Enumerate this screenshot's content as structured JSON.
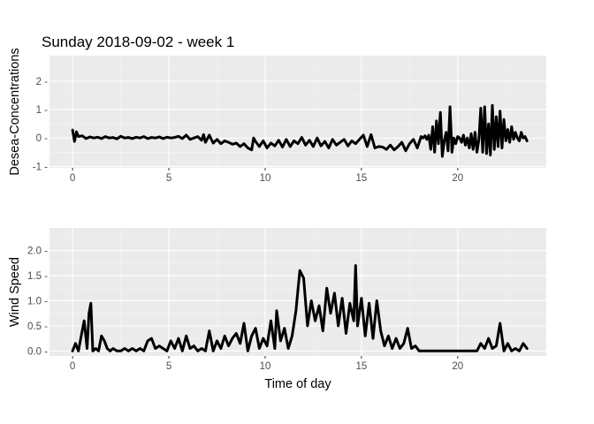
{
  "title": "Sunday 2018-09-02 - week 1",
  "chart_data": [
    {
      "type": "line",
      "ylabel": "Desea-Concentrations",
      "xlabel": "",
      "xlim": [
        -1.2,
        24.6
      ],
      "ylim": [
        -1.05,
        2.9
      ],
      "xticks": [
        0,
        5,
        10,
        15,
        20
      ],
      "yticks": [
        -1,
        0,
        1,
        2
      ],
      "xtick_labels": [
        "0",
        "5",
        "10",
        "15",
        "20"
      ],
      "ytick_labels": [
        "-1 -",
        "0 -",
        "1 -",
        "2 -"
      ],
      "x": [
        0,
        0.1,
        0.2,
        0.3,
        0.5,
        0.7,
        0.9,
        1.1,
        1.3,
        1.5,
        1.7,
        1.9,
        2.1,
        2.3,
        2.5,
        2.7,
        2.9,
        3.1,
        3.3,
        3.5,
        3.7,
        3.9,
        4.1,
        4.3,
        4.5,
        4.7,
        4.9,
        5.1,
        5.3,
        5.5,
        5.7,
        5.9,
        6.1,
        6.3,
        6.5,
        6.7,
        6.8,
        6.9,
        7.1,
        7.3,
        7.5,
        7.7,
        7.9,
        8.1,
        8.3,
        8.5,
        8.7,
        8.9,
        9.1,
        9.3,
        9.4,
        9.5,
        9.7,
        9.9,
        10.1,
        10.3,
        10.5,
        10.7,
        10.9,
        11.1,
        11.3,
        11.5,
        11.7,
        11.9,
        12.1,
        12.3,
        12.5,
        12.7,
        12.9,
        13.1,
        13.3,
        13.5,
        13.7,
        13.9,
        14.1,
        14.3,
        14.5,
        14.7,
        14.9,
        15.1,
        15.3,
        15.5,
        15.7,
        15.9,
        16.1,
        16.3,
        16.5,
        16.7,
        16.9,
        17.1,
        17.3,
        17.5,
        17.7,
        17.9,
        18.1,
        18.2,
        18.3,
        18.4,
        18.5,
        18.6,
        18.7,
        18.8,
        18.9,
        19.0,
        19.1,
        19.2,
        19.3,
        19.4,
        19.5,
        19.6,
        19.7,
        19.8,
        19.9,
        20.0,
        20.1,
        20.2,
        20.3,
        20.4,
        20.5,
        20.6,
        20.7,
        20.8,
        20.9,
        21.0,
        21.1,
        21.2,
        21.3,
        21.4,
        21.5,
        21.6,
        21.7,
        21.8,
        21.9,
        22.0,
        22.1,
        22.2,
        22.3,
        22.4,
        22.5,
        22.6,
        22.7,
        22.8,
        22.9,
        23.0,
        23.1,
        23.2,
        23.3,
        23.4,
        23.5,
        23.6
      ],
      "y": [
        0.28,
        -0.12,
        0.22,
        0.05,
        0.08,
        -0.02,
        0.04,
        0.0,
        0.03,
        -0.02,
        0.05,
        0.0,
        0.02,
        -0.03,
        0.06,
        0.0,
        0.02,
        -0.02,
        0.03,
        0.0,
        0.05,
        -0.02,
        0.02,
        0.0,
        0.04,
        -0.02,
        0.03,
        0.0,
        0.02,
        0.06,
        -0.02,
        0.1,
        -0.05,
        0.0,
        0.05,
        -0.08,
        0.12,
        -0.15,
        0.1,
        -0.18,
        -0.05,
        -0.2,
        -0.1,
        -0.15,
        -0.22,
        -0.18,
        -0.3,
        -0.2,
        -0.35,
        -0.42,
        0.0,
        -0.12,
        -0.3,
        -0.1,
        -0.35,
        -0.18,
        -0.28,
        -0.08,
        -0.32,
        -0.05,
        -0.3,
        -0.1,
        -0.2,
        0.02,
        -0.25,
        -0.08,
        -0.3,
        0.0,
        -0.28,
        -0.12,
        -0.35,
        -0.05,
        -0.25,
        -0.15,
        -0.05,
        -0.28,
        -0.1,
        -0.2,
        -0.05,
        0.1,
        -0.3,
        0.12,
        -0.35,
        -0.3,
        -0.32,
        -0.4,
        -0.25,
        -0.42,
        -0.3,
        -0.15,
        -0.45,
        -0.2,
        -0.05,
        -0.35,
        0.05,
        0.0,
        0.08,
        -0.05,
        0.1,
        -0.4,
        0.4,
        -0.5,
        0.6,
        -0.2,
        0.9,
        -0.65,
        -0.1,
        0.2,
        -0.45,
        1.1,
        -0.5,
        0.0,
        -0.2,
        0.05,
        0.0,
        -0.15,
        0.1,
        -0.25,
        0.0,
        -0.35,
        0.15,
        -0.4,
        0.2,
        -0.5,
        -0.05,
        1.05,
        -0.5,
        1.1,
        -0.55,
        0.5,
        -0.6,
        1.15,
        -0.4,
        0.75,
        -0.3,
        0.95,
        -0.35,
        0.65,
        -0.1,
        0.3,
        -0.15,
        0.4,
        -0.05,
        0.2,
        0.0,
        -0.1,
        0.2,
        0.0,
        0.05,
        -0.1
      ]
    },
    {
      "type": "line",
      "ylabel": "Wind Speed",
      "xlabel": "Time of day",
      "xlim": [
        -1.2,
        24.6
      ],
      "ylim": [
        -0.1,
        2.45
      ],
      "xticks": [
        0,
        5,
        10,
        15,
        20
      ],
      "yticks": [
        0.0,
        0.5,
        1.0,
        1.5,
        2.0
      ],
      "xtick_labels": [
        "0",
        "5",
        "10",
        "15",
        "20"
      ],
      "ytick_labels": [
        "0.0 -",
        "0.5 -",
        "1.0 -",
        "1.5 -",
        "2.0 -"
      ],
      "x": [
        0,
        0.15,
        0.3,
        0.45,
        0.6,
        0.75,
        0.85,
        0.95,
        1.05,
        1.2,
        1.35,
        1.5,
        1.65,
        1.8,
        1.95,
        2.1,
        2.3,
        2.5,
        2.7,
        2.9,
        3.1,
        3.3,
        3.5,
        3.7,
        3.9,
        4.1,
        4.3,
        4.5,
        4.7,
        4.9,
        5.1,
        5.3,
        5.5,
        5.7,
        5.9,
        6.1,
        6.3,
        6.5,
        6.7,
        6.9,
        7.1,
        7.3,
        7.5,
        7.7,
        7.9,
        8.1,
        8.3,
        8.5,
        8.7,
        8.9,
        9.1,
        9.3,
        9.5,
        9.7,
        9.9,
        10.1,
        10.3,
        10.5,
        10.6,
        10.8,
        11.0,
        11.2,
        11.4,
        11.6,
        11.8,
        12.0,
        12.2,
        12.4,
        12.6,
        12.8,
        13.0,
        13.2,
        13.4,
        13.6,
        13.8,
        14.0,
        14.2,
        14.4,
        14.6,
        14.7,
        14.8,
        15.0,
        15.2,
        15.4,
        15.6,
        15.8,
        16.0,
        16.2,
        16.4,
        16.6,
        16.8,
        17.0,
        17.2,
        17.4,
        17.6,
        17.8,
        18.0,
        18.3,
        18.6,
        18.9,
        19.2,
        19.5,
        19.8,
        20.1,
        20.4,
        20.7,
        21.0,
        21.2,
        21.4,
        21.6,
        21.8,
        22.0,
        22.2,
        22.4,
        22.6,
        22.8,
        23.0,
        23.2,
        23.4,
        23.6
      ],
      "y": [
        0.0,
        0.15,
        0.0,
        0.3,
        0.6,
        0.05,
        0.75,
        0.95,
        0.0,
        0.05,
        0.0,
        0.3,
        0.2,
        0.05,
        0.0,
        0.05,
        0.0,
        0.0,
        0.05,
        0.0,
        0.05,
        0.0,
        0.05,
        0.0,
        0.2,
        0.25,
        0.05,
        0.1,
        0.05,
        0.0,
        0.2,
        0.05,
        0.25,
        0.0,
        0.3,
        0.05,
        0.1,
        0.0,
        0.05,
        0.0,
        0.4,
        0.0,
        0.2,
        0.05,
        0.3,
        0.1,
        0.25,
        0.35,
        0.15,
        0.55,
        0.0,
        0.3,
        0.45,
        0.05,
        0.25,
        0.1,
        0.6,
        0.05,
        0.8,
        0.2,
        0.45,
        0.05,
        0.3,
        0.8,
        1.6,
        1.45,
        0.5,
        1.0,
        0.6,
        0.9,
        0.4,
        1.25,
        0.75,
        1.15,
        0.5,
        1.05,
        0.35,
        0.95,
        0.6,
        1.7,
        0.5,
        1.05,
        0.3,
        0.95,
        0.25,
        1.0,
        0.4,
        0.1,
        0.3,
        0.05,
        0.25,
        0.05,
        0.15,
        0.45,
        0.05,
        0.1,
        0.0,
        0.0,
        0.0,
        0.0,
        0.0,
        0.0,
        0.0,
        0.0,
        0.0,
        0.0,
        0.0,
        0.15,
        0.05,
        0.25,
        0.05,
        0.1,
        0.55,
        0.0,
        0.15,
        0.0,
        0.05,
        0.0,
        0.15,
        0.05
      ]
    }
  ]
}
